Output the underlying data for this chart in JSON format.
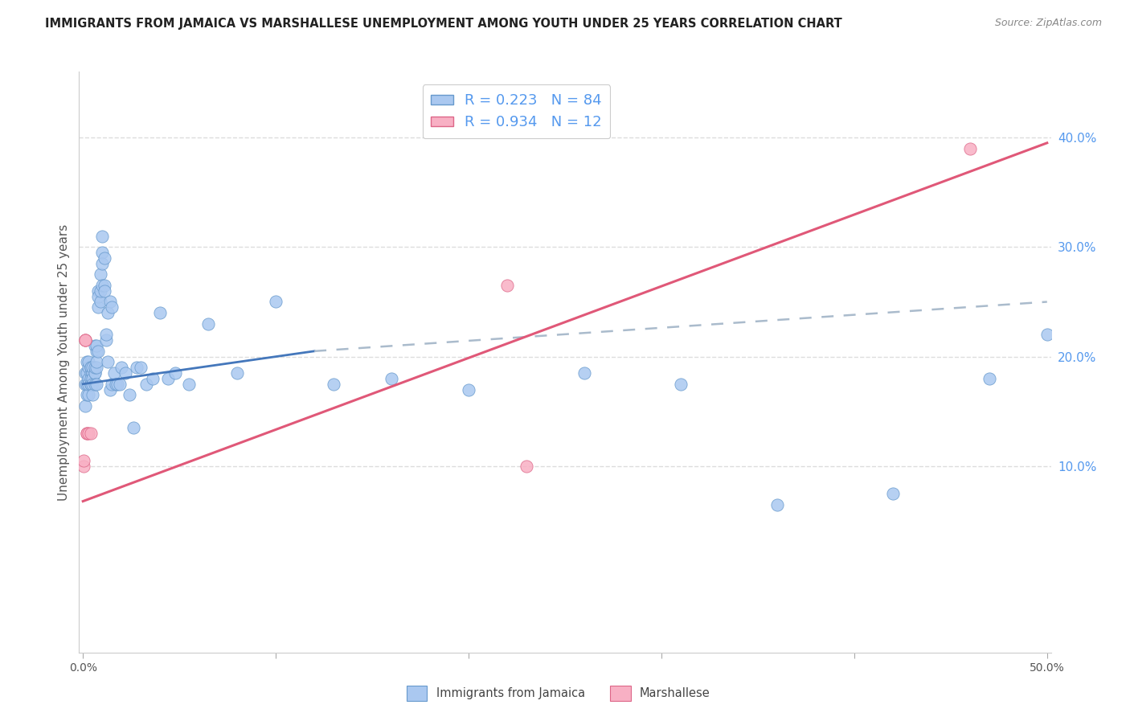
{
  "title": "IMMIGRANTS FROM JAMAICA VS MARSHALLESE UNEMPLOYMENT AMONG YOUTH UNDER 25 YEARS CORRELATION CHART",
  "source": "Source: ZipAtlas.com",
  "ylabel": "Unemployment Among Youth under 25 years",
  "xlim": [
    -0.002,
    0.502
  ],
  "ylim": [
    -0.07,
    0.46
  ],
  "yticks": [
    0.1,
    0.2,
    0.3,
    0.4
  ],
  "xticks": [
    0.0,
    0.1,
    0.2,
    0.3,
    0.4,
    0.5
  ],
  "jamaica_R": 0.223,
  "jamaica_N": 84,
  "marshallese_R": 0.934,
  "marshallese_N": 12,
  "jamaica_color": "#aac8f0",
  "marshallese_color": "#f8b0c4",
  "jamaica_edge_color": "#6699cc",
  "marshallese_edge_color": "#dd6688",
  "jamaica_line_color": "#4477bb",
  "marshallese_line_color": "#e05878",
  "dashed_line_color": "#aabbcc",
  "jamaica_x": [
    0.001,
    0.001,
    0.001,
    0.002,
    0.002,
    0.002,
    0.002,
    0.003,
    0.003,
    0.003,
    0.003,
    0.003,
    0.004,
    0.004,
    0.004,
    0.004,
    0.004,
    0.004,
    0.005,
    0.005,
    0.005,
    0.005,
    0.005,
    0.005,
    0.006,
    0.006,
    0.006,
    0.006,
    0.006,
    0.007,
    0.007,
    0.007,
    0.007,
    0.007,
    0.008,
    0.008,
    0.008,
    0.008,
    0.009,
    0.009,
    0.009,
    0.01,
    0.01,
    0.01,
    0.01,
    0.011,
    0.011,
    0.011,
    0.012,
    0.012,
    0.013,
    0.013,
    0.014,
    0.014,
    0.015,
    0.015,
    0.016,
    0.017,
    0.018,
    0.019,
    0.02,
    0.022,
    0.024,
    0.026,
    0.028,
    0.03,
    0.033,
    0.036,
    0.04,
    0.044,
    0.048,
    0.055,
    0.065,
    0.08,
    0.1,
    0.13,
    0.16,
    0.2,
    0.26,
    0.31,
    0.36,
    0.42,
    0.47,
    0.5
  ],
  "jamaica_y": [
    0.155,
    0.175,
    0.185,
    0.165,
    0.185,
    0.195,
    0.175,
    0.165,
    0.18,
    0.19,
    0.195,
    0.175,
    0.175,
    0.19,
    0.185,
    0.19,
    0.18,
    0.175,
    0.185,
    0.185,
    0.18,
    0.175,
    0.19,
    0.165,
    0.185,
    0.185,
    0.175,
    0.19,
    0.21,
    0.19,
    0.205,
    0.21,
    0.195,
    0.175,
    0.205,
    0.245,
    0.26,
    0.255,
    0.25,
    0.26,
    0.275,
    0.31,
    0.295,
    0.285,
    0.265,
    0.29,
    0.265,
    0.26,
    0.215,
    0.22,
    0.24,
    0.195,
    0.25,
    0.17,
    0.175,
    0.245,
    0.185,
    0.175,
    0.175,
    0.175,
    0.19,
    0.185,
    0.165,
    0.135,
    0.19,
    0.19,
    0.175,
    0.18,
    0.24,
    0.18,
    0.185,
    0.175,
    0.23,
    0.185,
    0.25,
    0.175,
    0.18,
    0.17,
    0.185,
    0.175,
    0.065,
    0.075,
    0.18,
    0.22
  ],
  "marshallese_x": [
    0.0005,
    0.0005,
    0.001,
    0.001,
    0.001,
    0.002,
    0.002,
    0.003,
    0.004,
    0.22,
    0.23,
    0.46
  ],
  "marshallese_y": [
    0.1,
    0.105,
    0.215,
    0.215,
    0.215,
    0.13,
    0.13,
    0.13,
    0.13,
    0.265,
    0.1,
    0.39
  ],
  "jamaica_trend_solid": [
    0.0,
    0.12,
    0.175,
    0.205
  ],
  "jamaica_trend_dashed": [
    0.12,
    0.5,
    0.205,
    0.25
  ],
  "marshallese_trend": [
    0.0,
    0.5,
    0.068,
    0.395
  ],
  "grid_color": "#dddddd",
  "title_fontsize": 10.5,
  "source_fontsize": 9,
  "ylabel_fontsize": 11,
  "tick_fontsize": 10,
  "legend_fontsize": 13,
  "right_tick_color": "#5599ee"
}
